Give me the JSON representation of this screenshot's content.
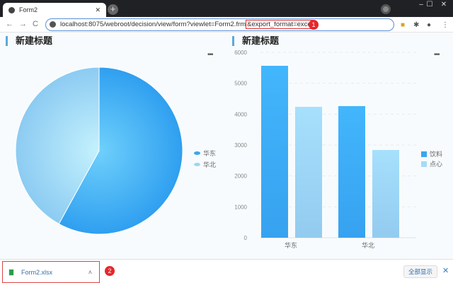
{
  "browser": {
    "tab_title": "Form2",
    "url_base": "localhost:8075/webroot/decision/view/form?viewlet=Form2.frm",
    "url_highlight": "&export_format=excel",
    "annotation_1": "1",
    "annotation_2": "2"
  },
  "widgets": [
    {
      "title": "新建标题",
      "more": "•••"
    },
    {
      "title": "新建标题",
      "more": "•••"
    }
  ],
  "chart_data": [
    {
      "type": "pie",
      "categories": [
        "华东",
        "华北"
      ],
      "values": [
        9802,
        7100
      ],
      "colors": [
        "#3aa6f0",
        "#9fd6f5"
      ],
      "legend": "right"
    },
    {
      "type": "bar",
      "categories": [
        "华东",
        "华北"
      ],
      "series": [
        {
          "name": "饮料",
          "values": [
            5565,
            4260
          ],
          "color": "#3aa6f0"
        },
        {
          "name": "点心",
          "values": [
            4237,
            2840
          ],
          "color": "#a5dbf8"
        }
      ],
      "ylim": [
        0,
        6000
      ],
      "yticks": [
        "0",
        "1000",
        "2000",
        "3000",
        "4000",
        "5000",
        "6000"
      ],
      "grid": true,
      "legend": "right"
    }
  ],
  "download": {
    "filename": "Form2.xlsx",
    "show_all": "全部显示"
  }
}
